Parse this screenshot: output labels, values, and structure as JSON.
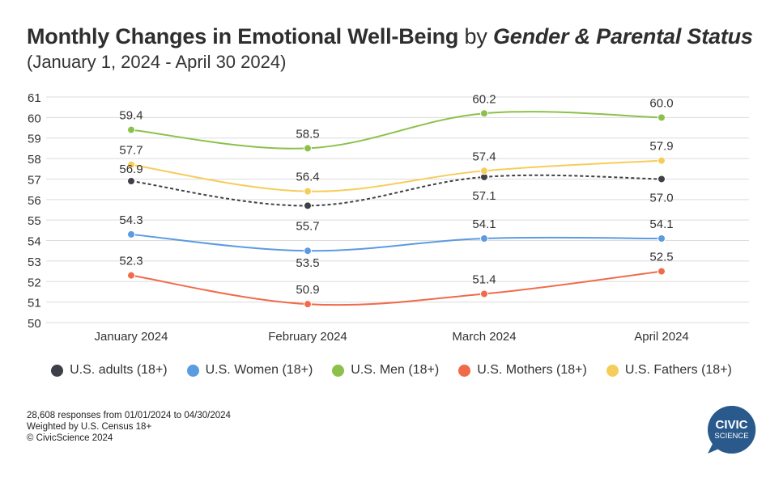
{
  "title": {
    "main": "Monthly Changes in Emotional Well-Being",
    "by": " by ",
    "italic": "Gender & Parental Status"
  },
  "subtitle": "(January 1, 2024 - April 30 2024)",
  "chart_data": {
    "type": "line",
    "categories": [
      "January 2024",
      "February 2024",
      "March 2024",
      "April 2024"
    ],
    "ylim": [
      50,
      61
    ],
    "yticks": [
      "50",
      "51",
      "52",
      "53",
      "54",
      "55",
      "56",
      "57",
      "58",
      "59",
      "60",
      "61"
    ],
    "grid": true,
    "legend": "bottom",
    "series": [
      {
        "name": "U.S. adults (18+)",
        "color": "#3d4046",
        "dashed": true,
        "values": [
          56.9,
          55.7,
          57.1,
          57.0
        ],
        "labels": [
          "56.9",
          "55.7",
          "57.1",
          "57.0"
        ]
      },
      {
        "name": "U.S. Women (18+)",
        "color": "#5b9be0",
        "dashed": false,
        "values": [
          54.3,
          53.5,
          54.1,
          54.1
        ],
        "labels": [
          "54.3",
          "53.5",
          "54.1",
          "54.1"
        ]
      },
      {
        "name": "U.S. Men (18+)",
        "color": "#8bc14a",
        "dashed": false,
        "values": [
          59.4,
          58.5,
          60.2,
          60.0
        ],
        "labels": [
          "59.4",
          "58.5",
          "60.2",
          "60.0"
        ]
      },
      {
        "name": "U.S. Mothers (18+)",
        "color": "#f06b4a",
        "dashed": false,
        "values": [
          52.3,
          50.9,
          51.4,
          52.5
        ],
        "labels": [
          "52.3",
          "50.9",
          "51.4",
          "52.5"
        ]
      },
      {
        "name": "U.S. Fathers (18+)",
        "color": "#f6cd5a",
        "dashed": false,
        "values": [
          57.7,
          56.4,
          57.4,
          57.9
        ],
        "labels": [
          "57.7",
          "56.4",
          "57.4",
          "57.9"
        ]
      }
    ]
  },
  "footer": {
    "line1": "28,608 responses from 01/01/2024 to 04/30/2024",
    "line2": "Weighted by U.S. Census 18+",
    "line3": "© CivicScience 2024"
  },
  "logo": {
    "line1": "CIVIC",
    "line2": "SCIENCE",
    "color": "#2a5a8c"
  }
}
